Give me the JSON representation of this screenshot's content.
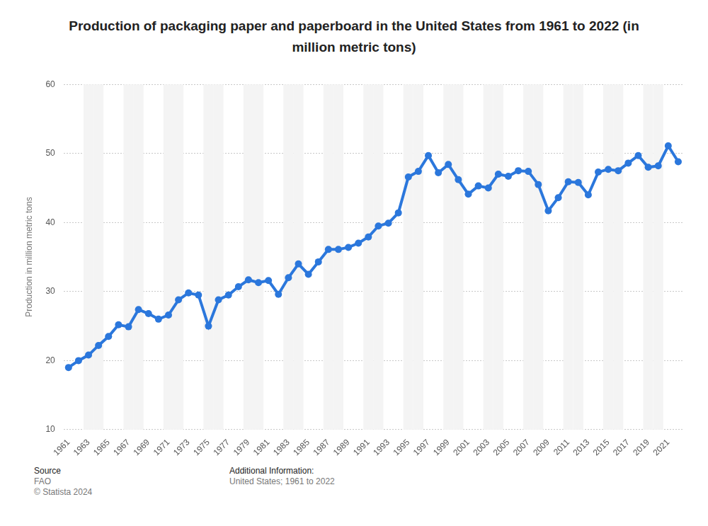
{
  "chart_data": {
    "type": "line",
    "title": "Production of packaging paper and paperboard in the United States from 1961 to 2022 (in million metric tons)",
    "y_label": "Production in million metric tons",
    "categories": [
      "1961",
      null,
      "1963",
      null,
      "1965",
      null,
      "1967",
      null,
      "1969",
      null,
      "1971",
      null,
      "1973",
      null,
      "1975",
      null,
      "1977",
      null,
      "1979",
      null,
      "1981",
      null,
      "1983",
      null,
      "1985",
      null,
      "1987",
      null,
      "1989",
      null,
      "1991",
      null,
      "1993",
      null,
      "1995",
      null,
      "1997",
      null,
      "1999",
      null,
      "2001",
      null,
      "2003",
      null,
      "2005",
      null,
      "2007",
      null,
      "2009",
      null,
      "2011",
      null,
      "2013",
      null,
      "2015",
      null,
      "2017",
      null,
      "2019",
      null,
      "2021",
      null
    ],
    "values": [
      19.0,
      20.0,
      20.8,
      22.2,
      23.5,
      25.2,
      24.9,
      27.4,
      26.8,
      26.0,
      26.6,
      28.8,
      29.8,
      29.5,
      25.0,
      28.8,
      29.5,
      30.7,
      31.7,
      31.3,
      31.6,
      29.6,
      32.0,
      34.0,
      32.5,
      34.3,
      36.1,
      36.1,
      36.4,
      37.0,
      37.9,
      39.5,
      39.9,
      41.4,
      46.6,
      47.4,
      49.7,
      47.2,
      48.4,
      46.2,
      44.1,
      45.3,
      45.0,
      47.0,
      46.7,
      47.5,
      47.4,
      45.5,
      41.7,
      43.6,
      45.9,
      45.8,
      44.0,
      47.3,
      47.7,
      47.5,
      48.6,
      49.7,
      48.0,
      48.2,
      51.1,
      48.8
    ],
    "color": "#2b77dc",
    "marker": "circle",
    "ylim": [
      10,
      60
    ],
    "yticks": [
      10,
      20,
      30,
      40,
      50,
      60
    ],
    "grid": true
  },
  "footer": {
    "source_heading": "Source",
    "source": "FAO",
    "copyright": "© Statista 2024",
    "info_heading": "Additional Information:",
    "info": "United States; 1961 to 2022"
  }
}
